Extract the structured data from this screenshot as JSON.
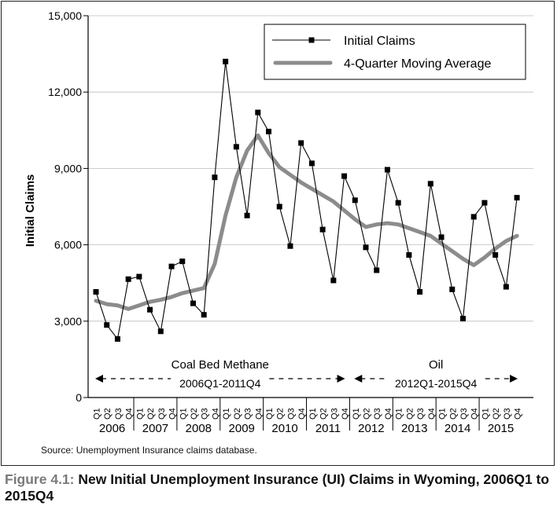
{
  "chart_data": {
    "type": "line",
    "ylabel": "Initial Claims",
    "ylim": [
      0,
      15000
    ],
    "yticks": [
      0,
      3000,
      6000,
      9000,
      12000,
      15000
    ],
    "ytick_labels": [
      "0",
      "3,000",
      "6,000",
      "9,000",
      "12,000",
      "15,000"
    ],
    "quarter_labels": [
      "Q1",
      "Q2",
      "Q3",
      "Q4",
      "Q1",
      "Q2",
      "Q3",
      "Q4",
      "Q1",
      "Q2",
      "Q3",
      "Q4",
      "Q1",
      "Q2",
      "Q3",
      "Q4",
      "Q1",
      "Q2",
      "Q3",
      "Q4",
      "Q1",
      "Q2",
      "Q3",
      "Q4",
      "Q1",
      "Q2",
      "Q3",
      "Q4",
      "Q1",
      "Q2",
      "Q3",
      "Q4",
      "Q1",
      "Q2",
      "Q3",
      "Q4",
      "Q1",
      "Q2",
      "Q3",
      "Q4"
    ],
    "years": [
      "2006",
      "2007",
      "2008",
      "2009",
      "2010",
      "2011",
      "2012",
      "2013",
      "2014",
      "2015"
    ],
    "series": [
      {
        "name": "Initial Claims",
        "style": "line-with-square-markers",
        "color": "#000000",
        "values": [
          4150,
          2850,
          2300,
          4650,
          4750,
          3450,
          2600,
          5150,
          5350,
          3700,
          3250,
          8650,
          13200,
          9850,
          7150,
          11200,
          10450,
          7500,
          5950,
          10000,
          9200,
          6600,
          4600,
          8700,
          7750,
          5900,
          5000,
          8950,
          7650,
          5600,
          4150,
          8400,
          6300,
          4250,
          3100,
          7100,
          7650,
          5600,
          4350,
          7850
        ]
      },
      {
        "name": "4-Quarter Moving Average",
        "style": "thick-line",
        "color": "#8c8c8c",
        "values": [
          3800,
          3670,
          3620,
          3480,
          3620,
          3760,
          3840,
          3950,
          4100,
          4200,
          4300,
          5250,
          7150,
          8650,
          9700,
          10300,
          9600,
          9050,
          8750,
          8450,
          8200,
          7950,
          7700,
          7350,
          7000,
          6700,
          6800,
          6850,
          6800,
          6650,
          6500,
          6350,
          6050,
          5750,
          5450,
          5200,
          5500,
          5850,
          6150,
          6350
        ]
      }
    ],
    "annotations": [
      {
        "line1": "Coal Bed  Methane",
        "line2": "2006Q1-2011Q4",
        "from_index": 0,
        "to_index": 23
      },
      {
        "line1": "Oil",
        "line2": "2012Q1-2015Q4",
        "from_index": 24,
        "to_index": 39
      }
    ],
    "legend_position": "top-right"
  },
  "source_text": "Source: Unemployment Insurance claims database.",
  "caption": {
    "label": "Figure 4.1:",
    "title": "New Initial Unemployment Insurance (UI) Claims in Wyoming, 2006Q1 to 2015Q4"
  }
}
